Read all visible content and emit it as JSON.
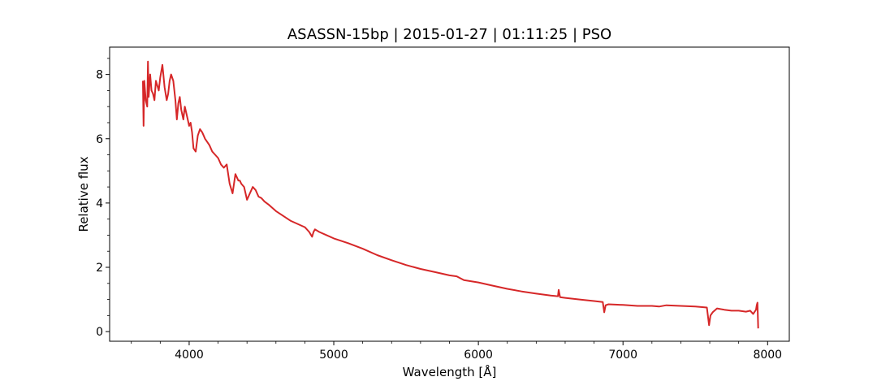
{
  "chart_data": {
    "type": "line",
    "title": "ASASSN-15bp | 2015-01-27 | 01:11:25 | PSO",
    "xlabel": "Wavelength [Å]",
    "ylabel": "Relative flux",
    "xlim": [
      3450,
      8150
    ],
    "ylim": [
      -0.3,
      8.85
    ],
    "xticks": [
      4000,
      5000,
      6000,
      7000,
      8000
    ],
    "xtick_labels": [
      "4000",
      "5000",
      "6000",
      "7000",
      "8000"
    ],
    "yticks": [
      0,
      2,
      4,
      6,
      8
    ],
    "ytick_labels": [
      "0",
      "2",
      "4",
      "6",
      "8"
    ],
    "grid": false,
    "series": [
      {
        "color": "#d62728",
        "x": [
          3680,
          3685,
          3690,
          3700,
          3710,
          3715,
          3720,
          3730,
          3740,
          3750,
          3760,
          3770,
          3790,
          3800,
          3815,
          3830,
          3845,
          3855,
          3865,
          3875,
          3890,
          3905,
          3915,
          3925,
          3935,
          3945,
          3960,
          3970,
          3980,
          3990,
          4000,
          4010,
          4020,
          4030,
          4045,
          4060,
          4075,
          4090,
          4100,
          4110,
          4125,
          4140,
          4160,
          4180,
          4200,
          4220,
          4240,
          4260,
          4280,
          4300,
          4320,
          4330,
          4340,
          4350,
          4360,
          4380,
          4400,
          4420,
          4440,
          4460,
          4470,
          4480,
          4500,
          4520,
          4550,
          4600,
          4650,
          4700,
          4750,
          4800,
          4830,
          4850,
          4860,
          4870,
          4900,
          4950,
          5000,
          5100,
          5200,
          5300,
          5400,
          5500,
          5600,
          5700,
          5800,
          5850,
          5900,
          6000,
          6100,
          6200,
          6300,
          6400,
          6500,
          6550,
          6555,
          6565,
          6600,
          6700,
          6800,
          6860,
          6870,
          6880,
          6900,
          7000,
          7100,
          7200,
          7250,
          7300,
          7400,
          7500,
          7580,
          7595,
          7605,
          7620,
          7650,
          7700,
          7750,
          7800,
          7850,
          7880,
          7900,
          7920,
          7925,
          7930,
          7935
        ],
        "y": [
          7.8,
          6.4,
          7.8,
          7.2,
          7.0,
          8.4,
          7.3,
          8.0,
          7.5,
          7.4,
          7.2,
          7.8,
          7.5,
          7.9,
          8.3,
          7.6,
          7.2,
          7.4,
          7.8,
          8.0,
          7.8,
          7.2,
          6.6,
          7.1,
          7.3,
          6.9,
          6.6,
          7.0,
          6.8,
          6.6,
          6.4,
          6.5,
          6.2,
          5.7,
          5.6,
          6.1,
          6.3,
          6.2,
          6.1,
          6.0,
          5.9,
          5.8,
          5.6,
          5.5,
          5.4,
          5.2,
          5.1,
          5.2,
          4.6,
          4.3,
          4.9,
          4.8,
          4.7,
          4.7,
          4.6,
          4.5,
          4.1,
          4.3,
          4.5,
          4.4,
          4.3,
          4.2,
          4.15,
          4.05,
          3.95,
          3.75,
          3.6,
          3.45,
          3.35,
          3.25,
          3.1,
          2.95,
          3.1,
          3.18,
          3.1,
          3.0,
          2.9,
          2.75,
          2.58,
          2.38,
          2.22,
          2.07,
          1.95,
          1.85,
          1.75,
          1.72,
          1.6,
          1.53,
          1.43,
          1.33,
          1.25,
          1.18,
          1.12,
          1.1,
          1.3,
          1.07,
          1.05,
          1.0,
          0.95,
          0.92,
          0.6,
          0.82,
          0.85,
          0.83,
          0.8,
          0.8,
          0.78,
          0.82,
          0.8,
          0.78,
          0.75,
          0.2,
          0.5,
          0.6,
          0.72,
          0.68,
          0.65,
          0.65,
          0.62,
          0.65,
          0.55,
          0.68,
          0.82,
          0.9,
          0.1
        ]
      }
    ]
  }
}
